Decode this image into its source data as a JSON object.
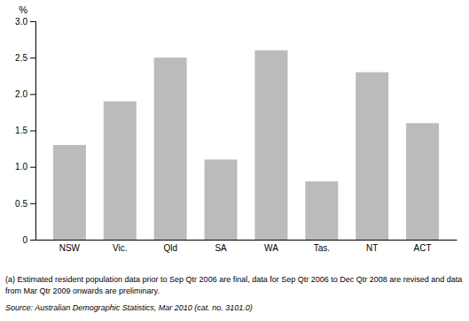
{
  "chart_data": {
    "type": "bar",
    "categories": [
      "NSW",
      "Vic.",
      "Qld",
      "SA",
      "WA",
      "Tas.",
      "NT",
      "ACT"
    ],
    "values": [
      1.3,
      1.9,
      2.5,
      1.1,
      2.6,
      0.8,
      2.3,
      1.6
    ],
    "color": "#BBBBBB",
    "ylim": [
      0,
      3.0
    ],
    "yticks": [
      0,
      0.5,
      {
        "value": 1.0,
        "label": "1.0"
      },
      1.5,
      {
        "value": 2.0,
        "label": "2.0"
      },
      2.5,
      {
        "value": 3.0,
        "label": "3.0"
      }
    ],
    "y_label": "%",
    "grid": false,
    "annotations": [
      "(a) Estimated resident population data prior to Sep Qtr 2006 are final, data for Sep Qtr 2006 to Dec Qtr 2008 are revised and data",
      "from Mar Qtr 2009 onwards are preliminary.",
      "Source: Australian Demographic Statistics, Mar 2010 (cat. no. 3101.0)"
    ]
  }
}
